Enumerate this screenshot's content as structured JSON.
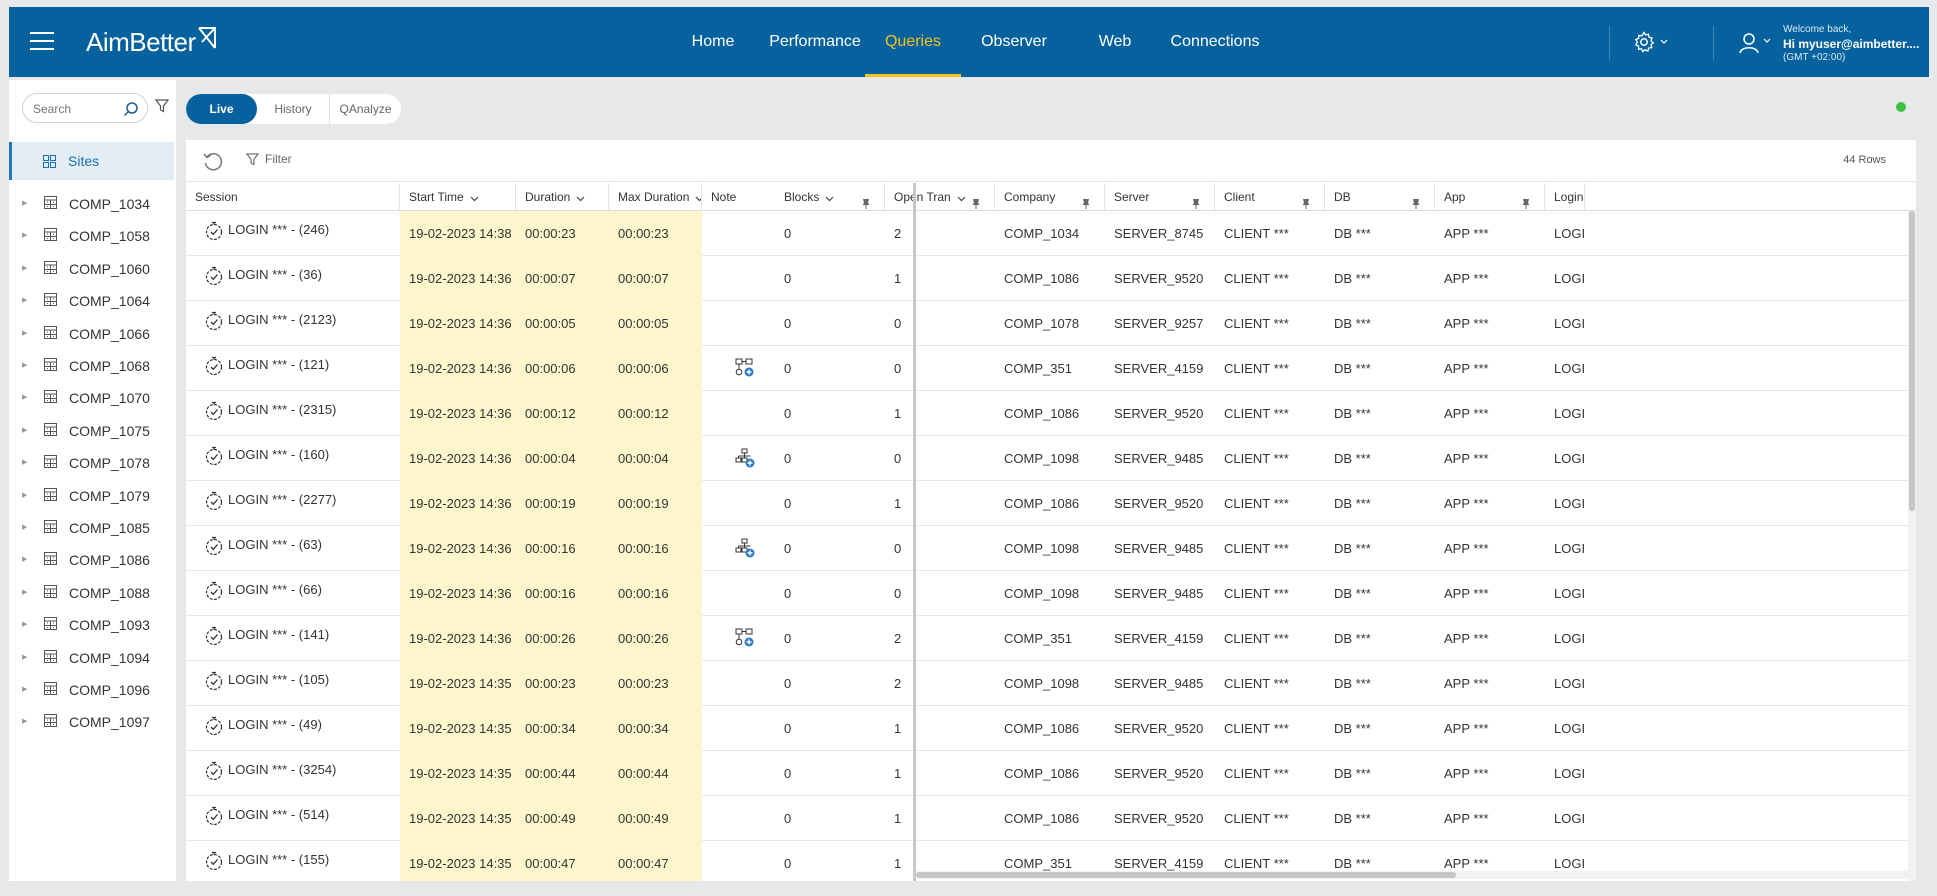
{
  "brand": {
    "name": "AimBetter"
  },
  "nav": {
    "items": [
      {
        "label": "Home"
      },
      {
        "label": "Performance"
      },
      {
        "label": "Queries"
      },
      {
        "label": "Observer"
      },
      {
        "label": "Web"
      },
      {
        "label": "Connections"
      }
    ],
    "active": "Queries"
  },
  "user": {
    "welcome": "Welcome back,",
    "name": "Hi myuser@aimbetter....",
    "timezone": "(GMT +02:00)"
  },
  "colors": {
    "header_bg": "#06629e",
    "active_nav": "#f5c318",
    "highlight_col": "#fdf5cc",
    "status_ok": "#3ec13e"
  },
  "sidebar": {
    "search_placeholder": "Search",
    "root_label": "Sites",
    "items": [
      {
        "label": "COMP_1034"
      },
      {
        "label": "COMP_1058"
      },
      {
        "label": "COMP_1060"
      },
      {
        "label": "COMP_1064"
      },
      {
        "label": "COMP_1066"
      },
      {
        "label": "COMP_1068"
      },
      {
        "label": "COMP_1070"
      },
      {
        "label": "COMP_1075"
      },
      {
        "label": "COMP_1078"
      },
      {
        "label": "COMP_1079"
      },
      {
        "label": "COMP_1085"
      },
      {
        "label": "COMP_1086"
      },
      {
        "label": "COMP_1088"
      },
      {
        "label": "COMP_1093"
      },
      {
        "label": "COMP_1094"
      },
      {
        "label": "COMP_1096"
      },
      {
        "label": "COMP_1097"
      }
    ]
  },
  "view_tabs": {
    "items": [
      {
        "label": "Live"
      },
      {
        "label": "History"
      },
      {
        "label": "QAnalyze"
      }
    ],
    "active": "Live"
  },
  "toolbar": {
    "filter_label": "Filter",
    "row_count": "44 Rows"
  },
  "table": {
    "columns": [
      {
        "key": "session",
        "label": "Session"
      },
      {
        "key": "start",
        "label": "Start Time"
      },
      {
        "key": "duration",
        "label": "Duration"
      },
      {
        "key": "maxdur",
        "label": "Max Duration"
      },
      {
        "key": "note",
        "label": "Note"
      },
      {
        "key": "blocks",
        "label": "Blocks"
      },
      {
        "key": "opentran",
        "label": "Open Tran"
      },
      {
        "key": "company",
        "label": "Company"
      },
      {
        "key": "server",
        "label": "Server"
      },
      {
        "key": "client",
        "label": "Client"
      },
      {
        "key": "db",
        "label": "DB"
      },
      {
        "key": "app",
        "label": "App"
      },
      {
        "key": "login",
        "label": "Login"
      }
    ],
    "rows": [
      {
        "session": "LOGIN *** - (246)",
        "start": "19-02-2023 14:38",
        "duration": "00:00:23",
        "maxdur": "00:00:23",
        "note": "",
        "blocks": "0",
        "opentran": "2",
        "company": "COMP_1034",
        "server": "SERVER_8745",
        "client": "CLIENT ***",
        "db": "DB ***",
        "app": "APP ***",
        "login": "LOGIN"
      },
      {
        "session": "LOGIN *** - (36)",
        "start": "19-02-2023 14:36",
        "duration": "00:00:07",
        "maxdur": "00:00:07",
        "note": "",
        "blocks": "0",
        "opentran": "1",
        "company": "COMP_1086",
        "server": "SERVER_9520",
        "client": "CLIENT ***",
        "db": "DB ***",
        "app": "APP ***",
        "login": "LOGIN"
      },
      {
        "session": "LOGIN *** - (2123)",
        "start": "19-02-2023 14:36",
        "duration": "00:00:05",
        "maxdur": "00:00:05",
        "note": "",
        "blocks": "0",
        "opentran": "0",
        "company": "COMP_1078",
        "server": "SERVER_9257",
        "client": "CLIENT ***",
        "db": "DB ***",
        "app": "APP ***",
        "login": "LOGIN"
      },
      {
        "session": "LOGIN *** - (121)",
        "start": "19-02-2023 14:36",
        "duration": "00:00:06",
        "maxdur": "00:00:06",
        "note": "flow",
        "blocks": "0",
        "opentran": "0",
        "company": "COMP_351",
        "server": "SERVER_4159",
        "client": "CLIENT ***",
        "db": "DB ***",
        "app": "APP ***",
        "login": "LOGIN"
      },
      {
        "session": "LOGIN *** - (2315)",
        "start": "19-02-2023 14:36",
        "duration": "00:00:12",
        "maxdur": "00:00:12",
        "note": "",
        "blocks": "0",
        "opentran": "1",
        "company": "COMP_1086",
        "server": "SERVER_9520",
        "client": "CLIENT ***",
        "db": "DB ***",
        "app": "APP ***",
        "login": "LOGIN"
      },
      {
        "session": "LOGIN *** - (160)",
        "start": "19-02-2023 14:36",
        "duration": "00:00:04",
        "maxdur": "00:00:04",
        "note": "tree",
        "blocks": "0",
        "opentran": "0",
        "company": "COMP_1098",
        "server": "SERVER_9485",
        "client": "CLIENT ***",
        "db": "DB ***",
        "app": "APP ***",
        "login": "LOGIN"
      },
      {
        "session": "LOGIN *** - (2277)",
        "start": "19-02-2023 14:36",
        "duration": "00:00:19",
        "maxdur": "00:00:19",
        "note": "",
        "blocks": "0",
        "opentran": "1",
        "company": "COMP_1086",
        "server": "SERVER_9520",
        "client": "CLIENT ***",
        "db": "DB ***",
        "app": "APP ***",
        "login": "LOGIN"
      },
      {
        "session": "LOGIN *** - (63)",
        "start": "19-02-2023 14:36",
        "duration": "00:00:16",
        "maxdur": "00:00:16",
        "note": "tree",
        "blocks": "0",
        "opentran": "0",
        "company": "COMP_1098",
        "server": "SERVER_9485",
        "client": "CLIENT ***",
        "db": "DB ***",
        "app": "APP ***",
        "login": "LOGIN"
      },
      {
        "session": "LOGIN *** - (66)",
        "start": "19-02-2023 14:36",
        "duration": "00:00:16",
        "maxdur": "00:00:16",
        "note": "",
        "blocks": "0",
        "opentran": "0",
        "company": "COMP_1098",
        "server": "SERVER_9485",
        "client": "CLIENT ***",
        "db": "DB ***",
        "app": "APP ***",
        "login": "LOGIN"
      },
      {
        "session": "LOGIN *** - (141)",
        "start": "19-02-2023 14:36",
        "duration": "00:00:26",
        "maxdur": "00:00:26",
        "note": "flow",
        "blocks": "0",
        "opentran": "2",
        "company": "COMP_351",
        "server": "SERVER_4159",
        "client": "CLIENT ***",
        "db": "DB ***",
        "app": "APP ***",
        "login": "LOGIN"
      },
      {
        "session": "LOGIN *** - (105)",
        "start": "19-02-2023 14:35",
        "duration": "00:00:23",
        "maxdur": "00:00:23",
        "note": "",
        "blocks": "0",
        "opentran": "2",
        "company": "COMP_1098",
        "server": "SERVER_9485",
        "client": "CLIENT ***",
        "db": "DB ***",
        "app": "APP ***",
        "login": "LOGIN"
      },
      {
        "session": "LOGIN *** - (49)",
        "start": "19-02-2023 14:35",
        "duration": "00:00:34",
        "maxdur": "00:00:34",
        "note": "",
        "blocks": "0",
        "opentran": "1",
        "company": "COMP_1086",
        "server": "SERVER_9520",
        "client": "CLIENT ***",
        "db": "DB ***",
        "app": "APP ***",
        "login": "LOGIN"
      },
      {
        "session": "LOGIN *** - (3254)",
        "start": "19-02-2023 14:35",
        "duration": "00:00:44",
        "maxdur": "00:00:44",
        "note": "",
        "blocks": "0",
        "opentran": "1",
        "company": "COMP_1086",
        "server": "SERVER_9520",
        "client": "CLIENT ***",
        "db": "DB ***",
        "app": "APP ***",
        "login": "LOGIN"
      },
      {
        "session": "LOGIN *** - (514)",
        "start": "19-02-2023 14:35",
        "duration": "00:00:49",
        "maxdur": "00:00:49",
        "note": "",
        "blocks": "0",
        "opentran": "1",
        "company": "COMP_1086",
        "server": "SERVER_9520",
        "client": "CLIENT ***",
        "db": "DB ***",
        "app": "APP ***",
        "login": "LOGIN"
      },
      {
        "session": "LOGIN *** - (155)",
        "start": "19-02-2023 14:35",
        "duration": "00:00:47",
        "maxdur": "00:00:47",
        "note": "",
        "blocks": "0",
        "opentran": "1",
        "company": "COMP_351",
        "server": "SERVER_4159",
        "client": "CLIENT ***",
        "db": "DB ***",
        "app": "APP ***",
        "login": "LOGIN"
      }
    ]
  }
}
